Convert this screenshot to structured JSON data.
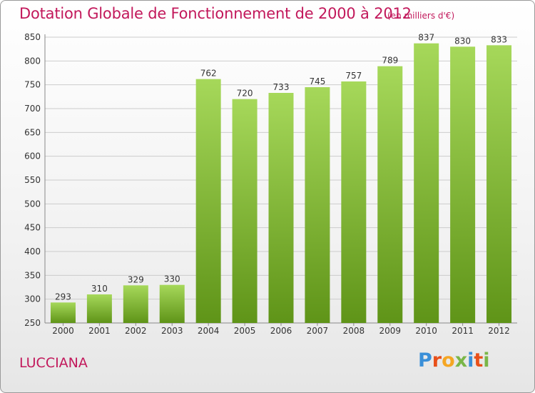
{
  "header": {
    "title": "Dotation Globale de Fonctionnement de 2000 à 2012",
    "unit": "(en milliers d'€)"
  },
  "footer": {
    "commune": "LUCCIANA",
    "logo_text": "Proxiti",
    "logo_colors": [
      "#3a8fd8",
      "#e8501a",
      "#f5a623",
      "#7ab648",
      "#3a8fd8",
      "#e8501a",
      "#7ab648"
    ]
  },
  "colors": {
    "bar_light": "#a6d85a",
    "bar_dark": "#5f9418",
    "title": "#c2185b",
    "grid": "#cccccc",
    "axis_text": "#333333"
  },
  "chart_data": {
    "type": "bar",
    "title": "Dotation Globale de Fonctionnement de 2000 à 2012",
    "unit": "(en milliers d'€)",
    "categories": [
      "2000",
      "2001",
      "2002",
      "2003",
      "2004",
      "2005",
      "2006",
      "2007",
      "2008",
      "2009",
      "2010",
      "2011",
      "2012"
    ],
    "values": [
      293,
      310,
      329,
      330,
      762,
      720,
      733,
      745,
      757,
      789,
      837,
      830,
      833
    ],
    "ylim": [
      250,
      850
    ],
    "yticks": [
      250,
      300,
      350,
      400,
      450,
      500,
      550,
      600,
      650,
      700,
      750,
      800,
      850
    ],
    "grid": true,
    "data_labels": true,
    "legend": "none"
  }
}
